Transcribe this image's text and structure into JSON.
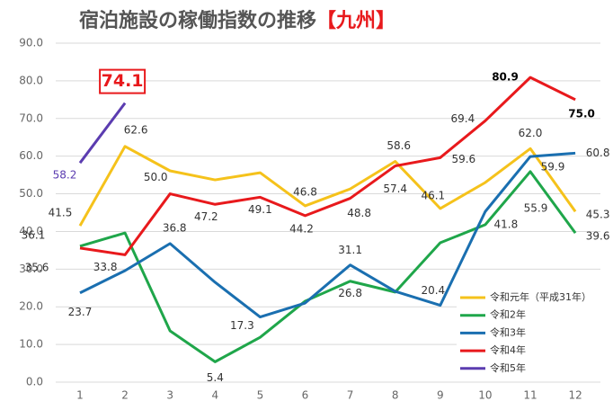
{
  "chart_data": {
    "type": "line",
    "title": "宿泊施設の稼働指数の推移",
    "title_region": "【九州】",
    "categories": [
      "1",
      "2",
      "3",
      "4",
      "5",
      "6",
      "7",
      "8",
      "9",
      "10",
      "11",
      "12"
    ],
    "ylim": [
      0,
      90
    ],
    "yticks": [
      {
        "value": 0,
        "label": "0.0"
      },
      {
        "value": 10,
        "label": "10.0"
      },
      {
        "value": 20,
        "label": "20.0"
      },
      {
        "value": 30,
        "label": "30.0"
      },
      {
        "value": 40,
        "label": "40.0"
      },
      {
        "value": 50,
        "label": "50.0"
      },
      {
        "value": 60,
        "label": "60.0"
      },
      {
        "value": 70,
        "label": "70.0"
      },
      {
        "value": 80,
        "label": "80.0"
      },
      {
        "value": 90,
        "label": "90.0"
      }
    ],
    "grid": true,
    "legend": "lower right",
    "series": [
      {
        "name": "令和元年（平成31年）",
        "color": "#f5c21b",
        "values": [
          41.5,
          62.6,
          56.1,
          53.7,
          55.6,
          46.8,
          51.3,
          58.6,
          46.1,
          53.0,
          62.0,
          45.3
        ],
        "value_labels": [
          "41.5",
          "62.6",
          null,
          null,
          null,
          "46.8",
          null,
          "58.6",
          "46.1",
          null,
          "62.0",
          "45.3"
        ]
      },
      {
        "name": "令和2年",
        "color": "#1fa64a",
        "values": [
          36.1,
          39.6,
          13.6,
          5.4,
          11.9,
          21.5,
          26.8,
          23.9,
          37.0,
          41.8,
          55.9,
          39.6
        ],
        "value_labels": [
          "36.1",
          null,
          null,
          "5.4",
          null,
          null,
          "26.8",
          null,
          null,
          "41.8",
          "55.9",
          "39.6"
        ]
      },
      {
        "name": "令和3年",
        "color": "#1a6fb0",
        "values": [
          23.7,
          29.6,
          36.8,
          26.5,
          17.3,
          21.0,
          31.1,
          24.1,
          20.4,
          45.3,
          59.9,
          60.8
        ],
        "value_labels": [
          "23.7",
          null,
          "36.8",
          null,
          "17.3",
          null,
          "31.1",
          null,
          "20.4",
          null,
          "59.9",
          "60.8"
        ]
      },
      {
        "name": "令和4年",
        "color": "#e8191c",
        "values": [
          35.6,
          33.8,
          50.0,
          47.2,
          49.1,
          44.2,
          48.8,
          57.4,
          59.6,
          69.4,
          80.9,
          75.0
        ],
        "value_labels": [
          "35.6",
          "33.8",
          "50.0",
          "47.2",
          "49.1",
          "44.2",
          "48.8",
          "57.4",
          "59.6",
          "69.4",
          "80.9",
          "75.0"
        ]
      },
      {
        "name": "令和5年",
        "color": "#5b3cb0",
        "values": [
          58.2,
          74.1,
          null,
          null,
          null,
          null,
          null,
          null,
          null,
          null,
          null,
          null
        ],
        "value_labels": [
          "58.2",
          "74.1",
          null,
          null,
          null,
          null,
          null,
          null,
          null,
          null,
          null,
          null
        ]
      }
    ]
  }
}
